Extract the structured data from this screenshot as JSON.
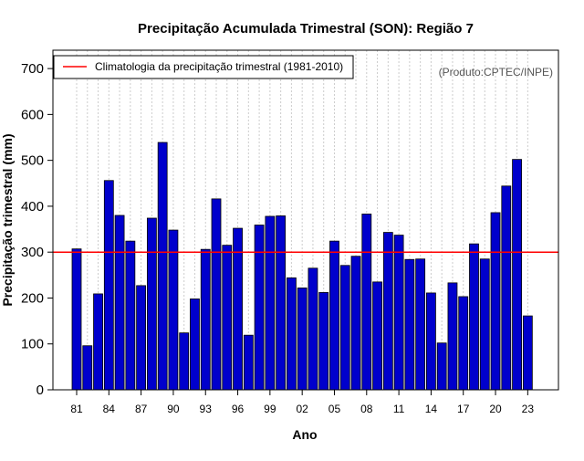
{
  "chart_data": {
    "type": "bar",
    "title": "Precipitação Acumulada Trimestral (SON): Região 7",
    "subtitle": "(Produto:CPTEC/INPE)",
    "xlabel": "Ano",
    "ylabel": "Precipitação trimestral (mm)",
    "ylim": [
      0,
      740
    ],
    "yticks": [
      0,
      100,
      200,
      300,
      400,
      500,
      600,
      700
    ],
    "categories": [
      "1981",
      "1982",
      "1983",
      "1984",
      "1985",
      "1986",
      "1987",
      "1988",
      "1989",
      "1990",
      "1991",
      "1992",
      "1993",
      "1994",
      "1995",
      "1996",
      "1997",
      "1998",
      "1999",
      "2000",
      "2001",
      "2002",
      "2003",
      "2004",
      "2005",
      "2006",
      "2007",
      "2008",
      "2009",
      "2010",
      "2011",
      "2012",
      "2013",
      "2014",
      "2015",
      "2016",
      "2017",
      "2018",
      "2019",
      "2020",
      "2021",
      "2022",
      "2023"
    ],
    "values": [
      307,
      96,
      209,
      456,
      380,
      324,
      227,
      374,
      539,
      348,
      124,
      198,
      306,
      416,
      315,
      352,
      119,
      359,
      378,
      379,
      244,
      222,
      265,
      212,
      324,
      271,
      291,
      383,
      235,
      343,
      337,
      284,
      285,
      211,
      102,
      233,
      203,
      318,
      285,
      386,
      444,
      502,
      161
    ],
    "xtick_labels": [
      "81",
      "84",
      "87",
      "90",
      "93",
      "96",
      "99",
      "02",
      "05",
      "08",
      "11",
      "14",
      "17",
      "20",
      "23"
    ],
    "xtick_years": [
      "1981",
      "1984",
      "1987",
      "1990",
      "1993",
      "1996",
      "1999",
      "2002",
      "2005",
      "2008",
      "2011",
      "2014",
      "2017",
      "2020",
      "2023"
    ],
    "climatology": {
      "label": "Climatologia da precipitação trimestral (1981-2010)",
      "value": 300
    },
    "legend_placement": "top-left",
    "grid": "vertical dotted",
    "colors": {
      "bar": "#0000cc",
      "bar_border": "#000000",
      "climatology_line": "#ff0000",
      "grid": "#cccccc"
    }
  }
}
